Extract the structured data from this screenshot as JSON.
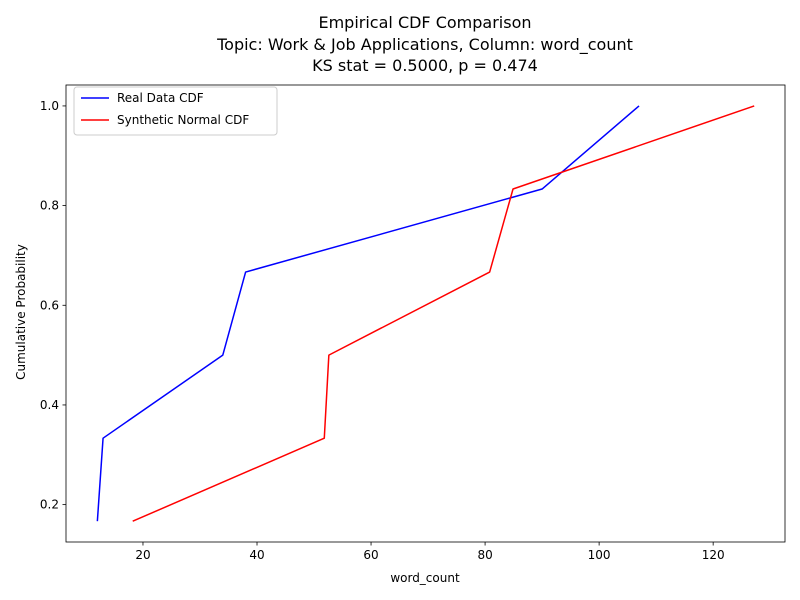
{
  "chart_data": {
    "type": "line",
    "title_lines": [
      "Empirical CDF Comparison",
      "Topic: Work & Job Applications, Column: word_count",
      "KS stat = 0.5000, p = 0.474"
    ],
    "xlabel": "word_count",
    "ylabel": "Cumulative Probability",
    "xlim": [
      6.5,
      132.6
    ],
    "ylim": [
      0.125,
      1.042
    ],
    "xticks": [
      20,
      40,
      60,
      80,
      100,
      120
    ],
    "yticks": [
      0.2,
      0.4,
      0.6,
      0.8,
      1.0
    ],
    "xtick_labels": [
      "20",
      "40",
      "60",
      "80",
      "100",
      "120"
    ],
    "ytick_labels": [
      "0.2",
      "0.4",
      "0.6",
      "0.8",
      "1.0"
    ],
    "legend_position": "upper-left",
    "grid": false,
    "series": [
      {
        "name": "Real Data CDF",
        "color": "#0000ff",
        "x": [
          12,
          13,
          34,
          38,
          90,
          107
        ],
        "y": [
          0.1667,
          0.3333,
          0.5,
          0.6667,
          0.8333,
          1.0
        ]
      },
      {
        "name": "Synthetic Normal CDF",
        "color": "#ff0000",
        "x": [
          18.2,
          51.8,
          52.6,
          80.8,
          84.9,
          127.2
        ],
        "y": [
          0.1667,
          0.3333,
          0.5,
          0.6667,
          0.8333,
          1.0
        ]
      }
    ]
  }
}
